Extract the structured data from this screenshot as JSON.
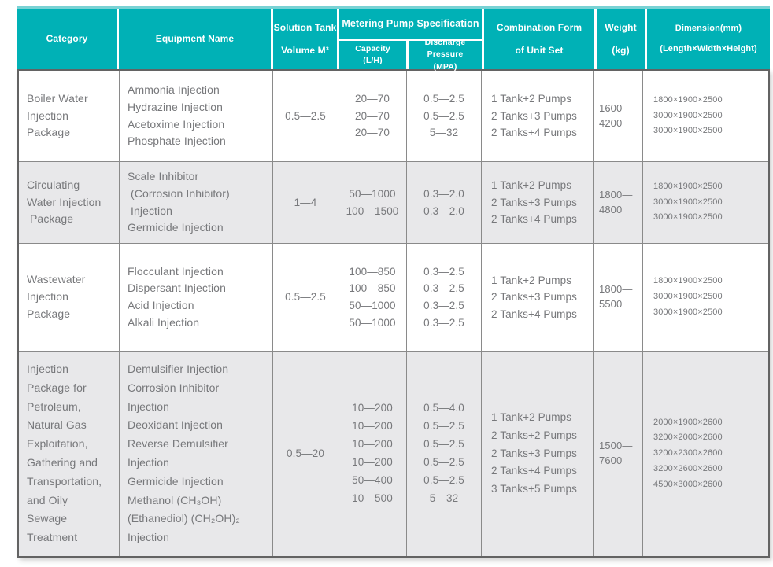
{
  "colors": {
    "header_teal": "#00b1b6",
    "header_teal_light": "#79d2d4",
    "row_alt_gray": "#e8e8ea",
    "grid_line": "#8a8a8a",
    "outer_border": "#636363",
    "body_text": "#77787b",
    "header_text": "#ffffff"
  },
  "header": {
    "category": "Category",
    "equipment": "Equipment Name",
    "tank": "Solution Tank\nVolume M³",
    "pump_spec": "Metering Pump Specification",
    "capacity": "Capacity\n(L/H)",
    "discharge": "Discharge Pressure\n(MPA)",
    "combination": "Combination Form\nof Unit Set",
    "weight": "Weight\n(kg)",
    "dimension": "Dimension(mm)\n(Length×Width×Height)"
  },
  "rows": [
    {
      "category": "Boiler Water\nInjection\nPackage",
      "equipment": "Ammonia Injection\nHydrazine Injection\nAcetoxime Injection\nPhosphate Injection",
      "tank_volume": "0.5—2.5",
      "capacity": "20—70\n20—70\n20—70",
      "discharge_pressure": "0.5—2.5\n0.5—2.5\n5—32",
      "combination": "1 Tank+2 Pumps\n2 Tanks+3 Pumps\n2 Tanks+4 Pumps",
      "weight": "1600—\n4200",
      "dimension": "1800×1900×2500\n3000×1900×2500\n3000×1900×2500"
    },
    {
      "category": "Circulating\nWater Injection\n Package",
      "equipment": "Scale Inhibitor\n (Corrosion Inhibitor)\n Injection\nGermicide Injection",
      "tank_volume": "1—4",
      "capacity": "50—1000\n100—1500",
      "discharge_pressure": "0.3—2.0\n0.3—2.0",
      "combination": "1 Tank+2 Pumps\n2 Tanks+3 Pumps\n2 Tanks+4 Pumps",
      "weight": "1800—\n4800",
      "dimension": "1800×1900×2500\n3000×1900×2500\n3000×1900×2500"
    },
    {
      "category": "Wastewater\nInjection\nPackage",
      "equipment": "Flocculant Injection\nDispersant Injection\nAcid Injection\nAlkali Injection",
      "tank_volume": "0.5—2.5",
      "capacity": "100—850\n100—850\n50—1000\n50—1000",
      "discharge_pressure": "0.3—2.5\n0.3—2.5\n0.3—2.5\n0.3—2.5",
      "combination": "1 Tank+2 Pumps\n2 Tanks+3 Pumps\n2 Tanks+4 Pumps",
      "weight": "1800—\n5500",
      "dimension": "1800×1900×2500\n3000×1900×2500\n3000×1900×2500"
    },
    {
      "category": "Injection\nPackage for\nPetroleum,\nNatural Gas\nExploitation,\nGathering and\nTransportation,\nand Oily\nSewage\nTreatment",
      "equipment": "Demulsifier Injection\nCorrosion Inhibitor\nInjection\nDeoxidant Injection\nReverse Demulsifier\nInjection\nGermicide Injection\nMethanol (CH₃OH)\n(Ethanediol) (CH₂OH)₂\nInjection",
      "tank_volume": "0.5—20",
      "capacity": "10—200\n10—200\n10—200\n10—200\n50—400\n10—500",
      "discharge_pressure": "0.5—4.0\n0.5—2.5\n0.5—2.5\n0.5—2.5\n0.5—2.5\n5—32",
      "combination": "1 Tank+2 Pumps\n2 Tanks+2 Pumps\n2 Tanks+3 Pumps\n2 Tanks+4 Pumps\n3 Tanks+5 Pumps",
      "weight": "1500—\n7600",
      "dimension": "2000×1900×2600\n3200×2000×2600\n3200×2300×2600\n3200×2600×2600\n4500×3000×2600"
    }
  ]
}
